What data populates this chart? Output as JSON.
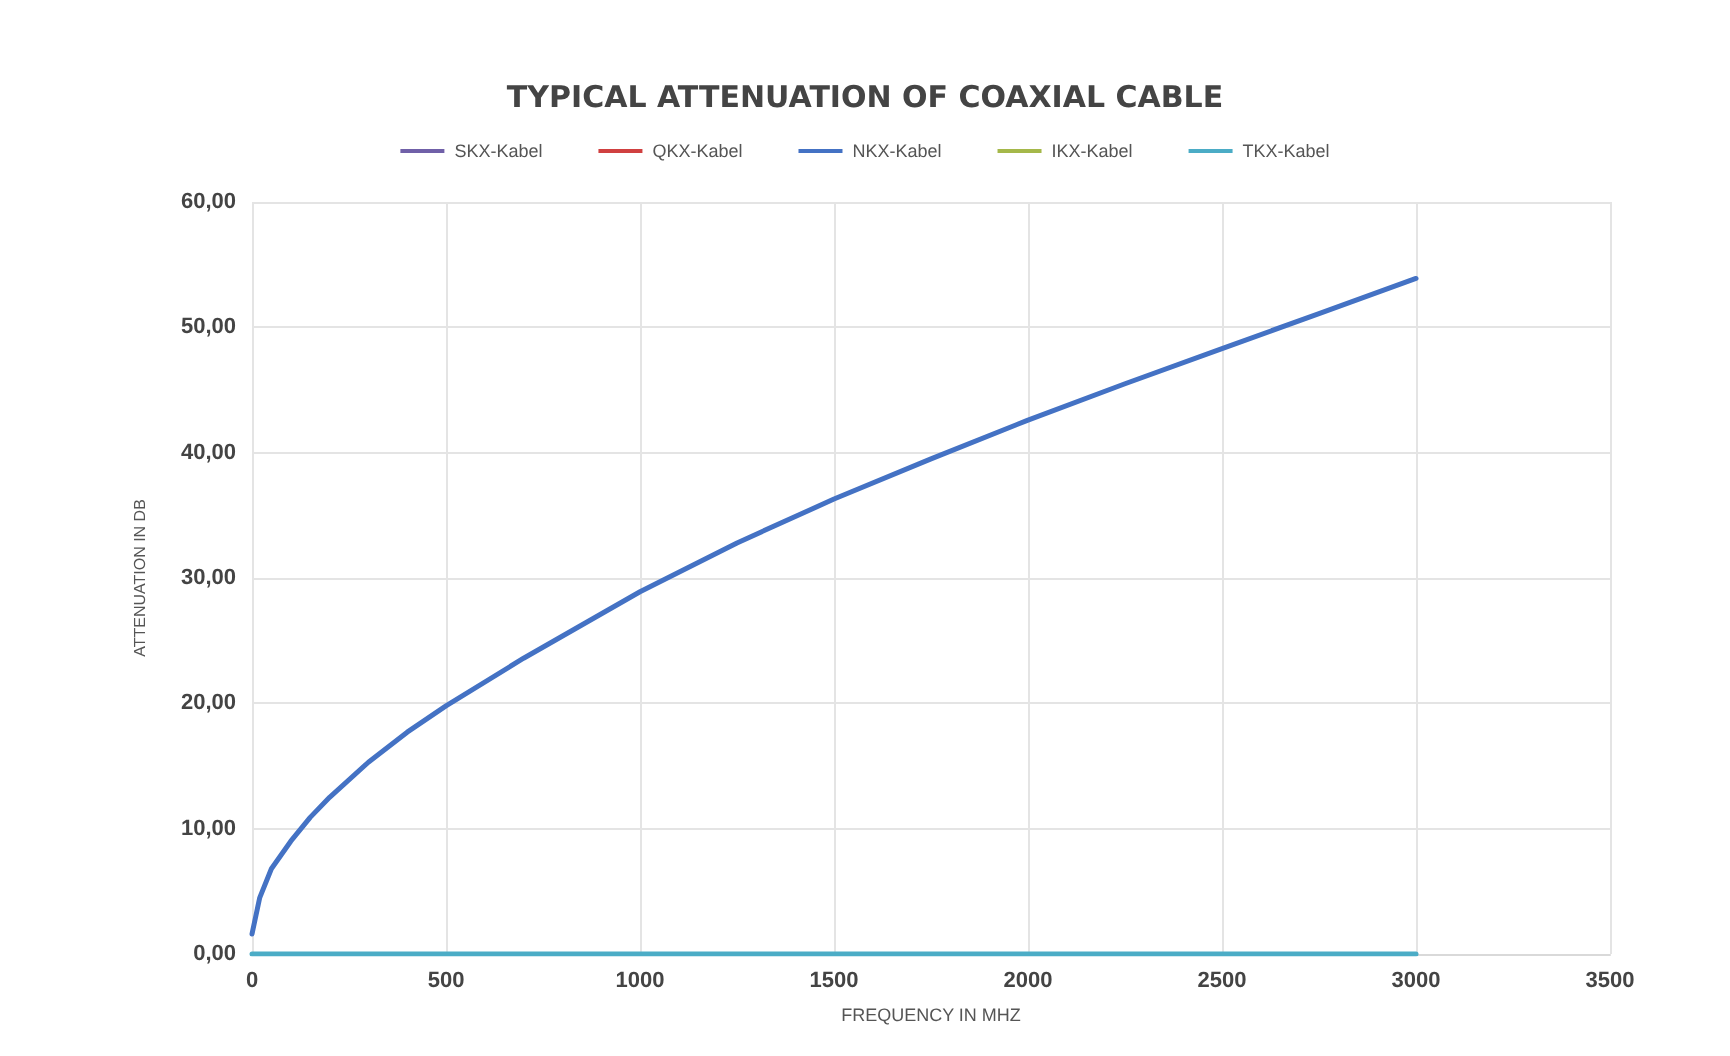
{
  "chart_data": {
    "type": "line",
    "title": "TYPICAL ATTENUATION OF COAXIAL CABLE",
    "xlabel": "FREQUENCY IN MHZ",
    "ylabel": "ATTENUATION IN DB",
    "x": [
      0,
      20,
      50,
      100,
      150,
      200,
      300,
      400,
      500,
      700,
      1000,
      1250,
      1500,
      1750,
      2000,
      2250,
      2500,
      2750,
      3000
    ],
    "series": [
      {
        "name": "SKX-Kabel",
        "color": "#7060a8",
        "values": [
          null,
          null,
          null,
          null,
          null,
          null,
          null,
          null,
          null,
          null,
          null,
          null,
          null,
          null,
          null,
          null,
          null,
          null,
          null
        ]
      },
      {
        "name": "QKX-Kabel",
        "color": "#d04040",
        "values": [
          null,
          null,
          null,
          null,
          null,
          null,
          null,
          null,
          null,
          null,
          null,
          null,
          null,
          null,
          null,
          null,
          null,
          null,
          null
        ]
      },
      {
        "name": "NKX-Kabel",
        "color": "#4472c4",
        "values": [
          1.6,
          4.5,
          6.8,
          9.0,
          10.9,
          12.5,
          15.3,
          17.7,
          19.8,
          23.6,
          28.9,
          32.8,
          36.3,
          39.5,
          42.6,
          45.5,
          48.3,
          51.1,
          53.9
        ]
      },
      {
        "name": "IKX-Kabel",
        "color": "#a5b84a",
        "values": [
          null,
          null,
          null,
          null,
          null,
          null,
          null,
          null,
          null,
          null,
          null,
          null,
          null,
          null,
          null,
          null,
          null,
          null,
          null
        ]
      },
      {
        "name": "TKX-Kabel",
        "color": "#4bacc6",
        "values": [
          0,
          0,
          0,
          0,
          0,
          0,
          0,
          0,
          0,
          0,
          0,
          0,
          0,
          0,
          0,
          0,
          0,
          0,
          0
        ]
      }
    ],
    "xlim": [
      0,
      3500
    ],
    "xticks": [
      0,
      500,
      1000,
      1500,
      2000,
      2500,
      3000,
      3500
    ],
    "ylim": [
      0,
      60
    ],
    "yticks": [
      {
        "value": 0,
        "label": "0,00"
      },
      {
        "value": 10,
        "label": "10,00"
      },
      {
        "value": 20,
        "label": "20,00"
      },
      {
        "value": 30,
        "label": "30,00"
      },
      {
        "value": 40,
        "label": "40,00"
      },
      {
        "value": 50,
        "label": "50,00"
      },
      {
        "value": 60,
        "label": "60,00"
      }
    ],
    "grid": true,
    "legend": "top",
    "marker": "none",
    "line_style": "solid"
  }
}
